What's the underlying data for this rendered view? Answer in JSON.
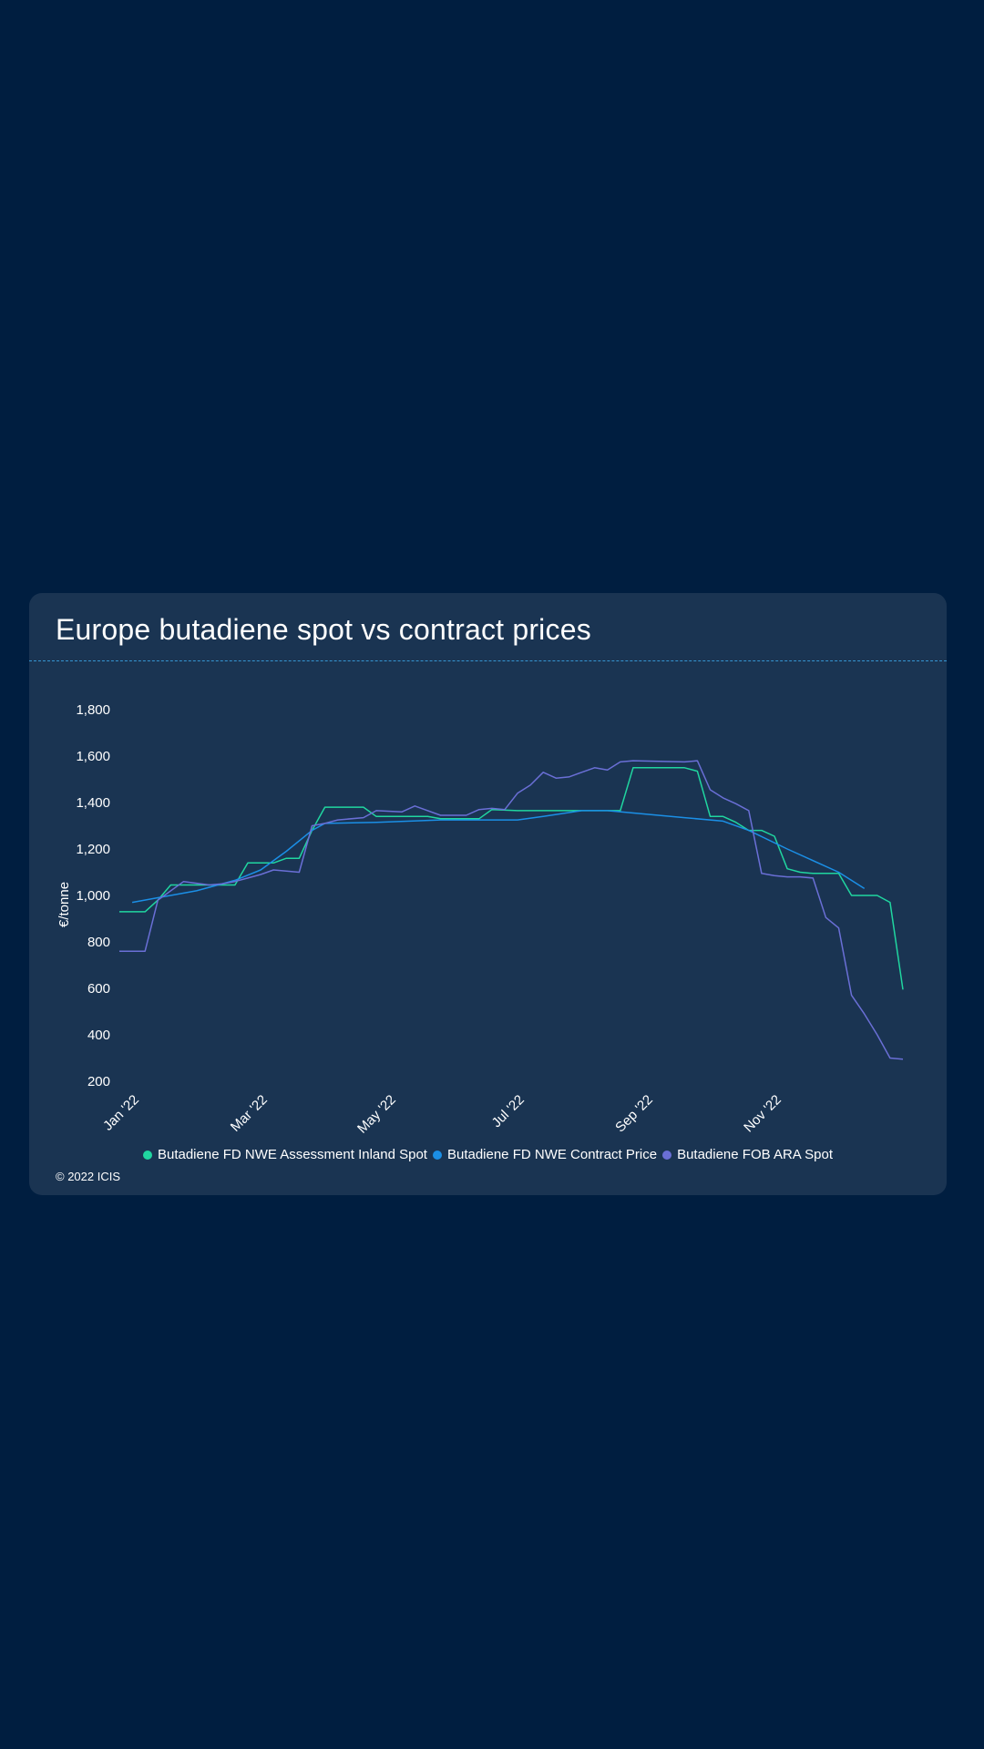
{
  "colors": {
    "page_background": "#001e40",
    "card_background": "#1a3452",
    "series_1": "#20d6a0",
    "series_2": "#1b8fe6",
    "series_3": "#6a6fd6"
  },
  "chart_data": {
    "type": "line",
    "title": "Europe butadiene spot vs contract prices",
    "xlabel": "",
    "ylabel": "€/tonne",
    "ylim": [
      200,
      1800
    ],
    "yticks": [
      200,
      400,
      600,
      800,
      1000,
      1200,
      1400,
      1600,
      1800
    ],
    "ytick_labels": [
      "200",
      "400",
      "600",
      "800",
      "1,000",
      "1,200",
      "1,400",
      "1,600",
      "1,800"
    ],
    "xlim": [
      0,
      61
    ],
    "xticks": [
      1,
      11,
      21,
      31,
      41,
      51
    ],
    "xtick_labels": [
      "Jan '22",
      "Mar '22",
      "May '22",
      "Jul '22",
      "Sep '22",
      "Nov '22"
    ],
    "x_unit": "week index (Jan '22 = week 1)",
    "legend_position": "bottom-center",
    "grid": false,
    "series": [
      {
        "name": "Butadiene FD NWE Assessment Inland Spot",
        "color": "#20d6a0",
        "points": [
          [
            0,
            930
          ],
          [
            2,
            930
          ],
          [
            3,
            980
          ],
          [
            4,
            1045
          ],
          [
            6,
            1045
          ],
          [
            8,
            1045
          ],
          [
            9,
            1045
          ],
          [
            10,
            1140
          ],
          [
            12,
            1140
          ],
          [
            13,
            1160
          ],
          [
            14,
            1160
          ],
          [
            15,
            1280
          ],
          [
            16,
            1380
          ],
          [
            19,
            1380
          ],
          [
            20,
            1340
          ],
          [
            24,
            1340
          ],
          [
            25,
            1330
          ],
          [
            28,
            1330
          ],
          [
            29,
            1370
          ],
          [
            31,
            1365
          ],
          [
            35,
            1365
          ],
          [
            39,
            1365
          ],
          [
            40,
            1550
          ],
          [
            44,
            1550
          ],
          [
            45,
            1535
          ],
          [
            46,
            1340
          ],
          [
            47,
            1340
          ],
          [
            48,
            1315
          ],
          [
            49,
            1280
          ],
          [
            50,
            1280
          ],
          [
            51,
            1255
          ],
          [
            52,
            1115
          ],
          [
            53,
            1100
          ],
          [
            54,
            1095
          ],
          [
            56,
            1095
          ],
          [
            57,
            1000
          ],
          [
            59,
            1000
          ],
          [
            60,
            970
          ],
          [
            61,
            595
          ]
        ]
      },
      {
        "name": "Butadiene FD NWE Contract Price",
        "color": "#1b8fe6",
        "points": [
          [
            1,
            970
          ],
          [
            3,
            990
          ],
          [
            6,
            1020
          ],
          [
            9,
            1065
          ],
          [
            11,
            1110
          ],
          [
            13,
            1190
          ],
          [
            15,
            1280
          ],
          [
            16,
            1310
          ],
          [
            20,
            1315
          ],
          [
            25,
            1325
          ],
          [
            31,
            1325
          ],
          [
            33,
            1340
          ],
          [
            36,
            1365
          ],
          [
            38,
            1365
          ],
          [
            41,
            1350
          ],
          [
            44,
            1335
          ],
          [
            47,
            1320
          ],
          [
            49,
            1280
          ],
          [
            52,
            1200
          ],
          [
            56,
            1100
          ],
          [
            58,
            1030
          ]
        ]
      },
      {
        "name": "Butadiene FOB ARA Spot",
        "color": "#6a6fd6",
        "points": [
          [
            0,
            760
          ],
          [
            2,
            760
          ],
          [
            3,
            980
          ],
          [
            5,
            1060
          ],
          [
            7,
            1045
          ],
          [
            8,
            1050
          ],
          [
            9,
            1060
          ],
          [
            10,
            1075
          ],
          [
            11,
            1090
          ],
          [
            12,
            1110
          ],
          [
            14,
            1100
          ],
          [
            15,
            1300
          ],
          [
            16,
            1310
          ],
          [
            17,
            1325
          ],
          [
            19,
            1335
          ],
          [
            20,
            1365
          ],
          [
            22,
            1360
          ],
          [
            23,
            1385
          ],
          [
            25,
            1345
          ],
          [
            27,
            1345
          ],
          [
            28,
            1370
          ],
          [
            29,
            1375
          ],
          [
            30,
            1370
          ],
          [
            31,
            1440
          ],
          [
            32,
            1475
          ],
          [
            33,
            1530
          ],
          [
            34,
            1505
          ],
          [
            35,
            1510
          ],
          [
            36,
            1530
          ],
          [
            37,
            1550
          ],
          [
            38,
            1540
          ],
          [
            39,
            1575
          ],
          [
            40,
            1580
          ],
          [
            44,
            1575
          ],
          [
            45,
            1580
          ],
          [
            46,
            1455
          ],
          [
            47,
            1420
          ],
          [
            48,
            1395
          ],
          [
            49,
            1365
          ],
          [
            50,
            1095
          ],
          [
            51,
            1085
          ],
          [
            52,
            1080
          ],
          [
            53,
            1080
          ],
          [
            54,
            1075
          ],
          [
            55,
            905
          ],
          [
            56,
            860
          ],
          [
            57,
            570
          ],
          [
            58,
            490
          ],
          [
            59,
            400
          ],
          [
            60,
            300
          ],
          [
            61,
            295
          ]
        ]
      }
    ]
  },
  "copyright": "© 2022 ICIS"
}
